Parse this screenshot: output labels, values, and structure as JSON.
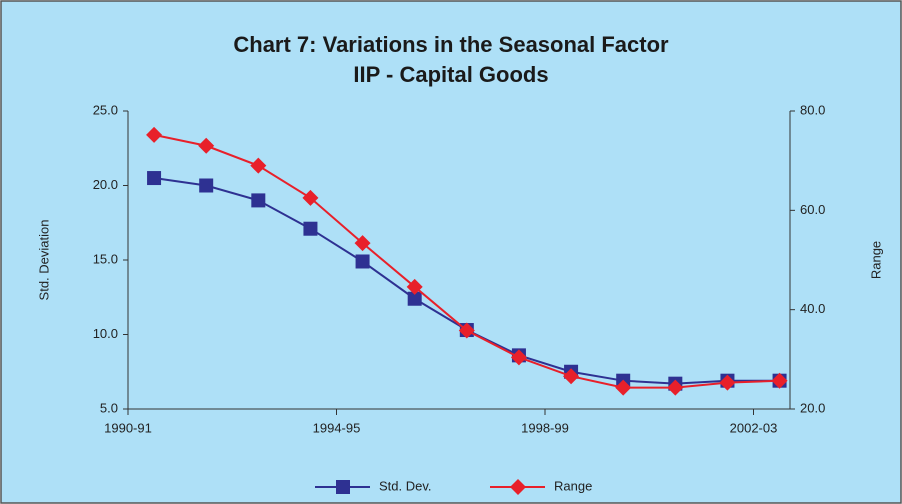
{
  "chart_data": {
    "type": "line",
    "title": "Chart 7: Variations in the Seasonal Factor",
    "subtitle": "IIP - Capital Goods",
    "y_label": "Std. Deviation",
    "y2_label": "Range",
    "x": [
      0.5,
      1.5,
      2.5,
      3.5,
      4.5,
      5.5,
      6.5,
      7.5,
      8.5,
      9.5,
      10.5,
      11.5,
      12.5
    ],
    "xlim": [
      0,
      12.7
    ],
    "xticks": [
      {
        "value": 0,
        "label": "1990-91"
      },
      {
        "value": 4,
        "label": "1994-95"
      },
      {
        "value": 8,
        "label": "1998-99"
      },
      {
        "value": 12,
        "label": "2002-03"
      }
    ],
    "ylim": [
      5,
      25
    ],
    "yticks": [
      {
        "value": 5,
        "label": "5.0"
      },
      {
        "value": 10,
        "label": "10.0"
      },
      {
        "value": 15,
        "label": "15.0"
      },
      {
        "value": 20,
        "label": "20.0"
      },
      {
        "value": 25,
        "label": "25.0"
      }
    ],
    "y2lim": [
      20,
      80
    ],
    "y2ticks": [
      {
        "value": 20,
        "label": "20.0"
      },
      {
        "value": 40,
        "label": "40.0"
      },
      {
        "value": 60,
        "label": "60.0"
      },
      {
        "value": 80,
        "label": "80.0"
      }
    ],
    "series": [
      {
        "name": "Std. Dev.",
        "color": "#2e3192",
        "marker": "square",
        "values": [
          20.5,
          20.0,
          19.0,
          17.1,
          14.9,
          12.4,
          10.3,
          8.6,
          7.5,
          6.9,
          6.7,
          6.9,
          6.9
        ]
      },
      {
        "name": "Range",
        "color": "#e8202a",
        "marker": "diamond",
        "axis": "y2",
        "values": [
          75.2,
          73.0,
          69.0,
          62.5,
          53.4,
          44.6,
          35.8,
          30.4,
          26.6,
          24.3,
          24.3,
          25.3,
          25.7
        ]
      }
    ]
  }
}
